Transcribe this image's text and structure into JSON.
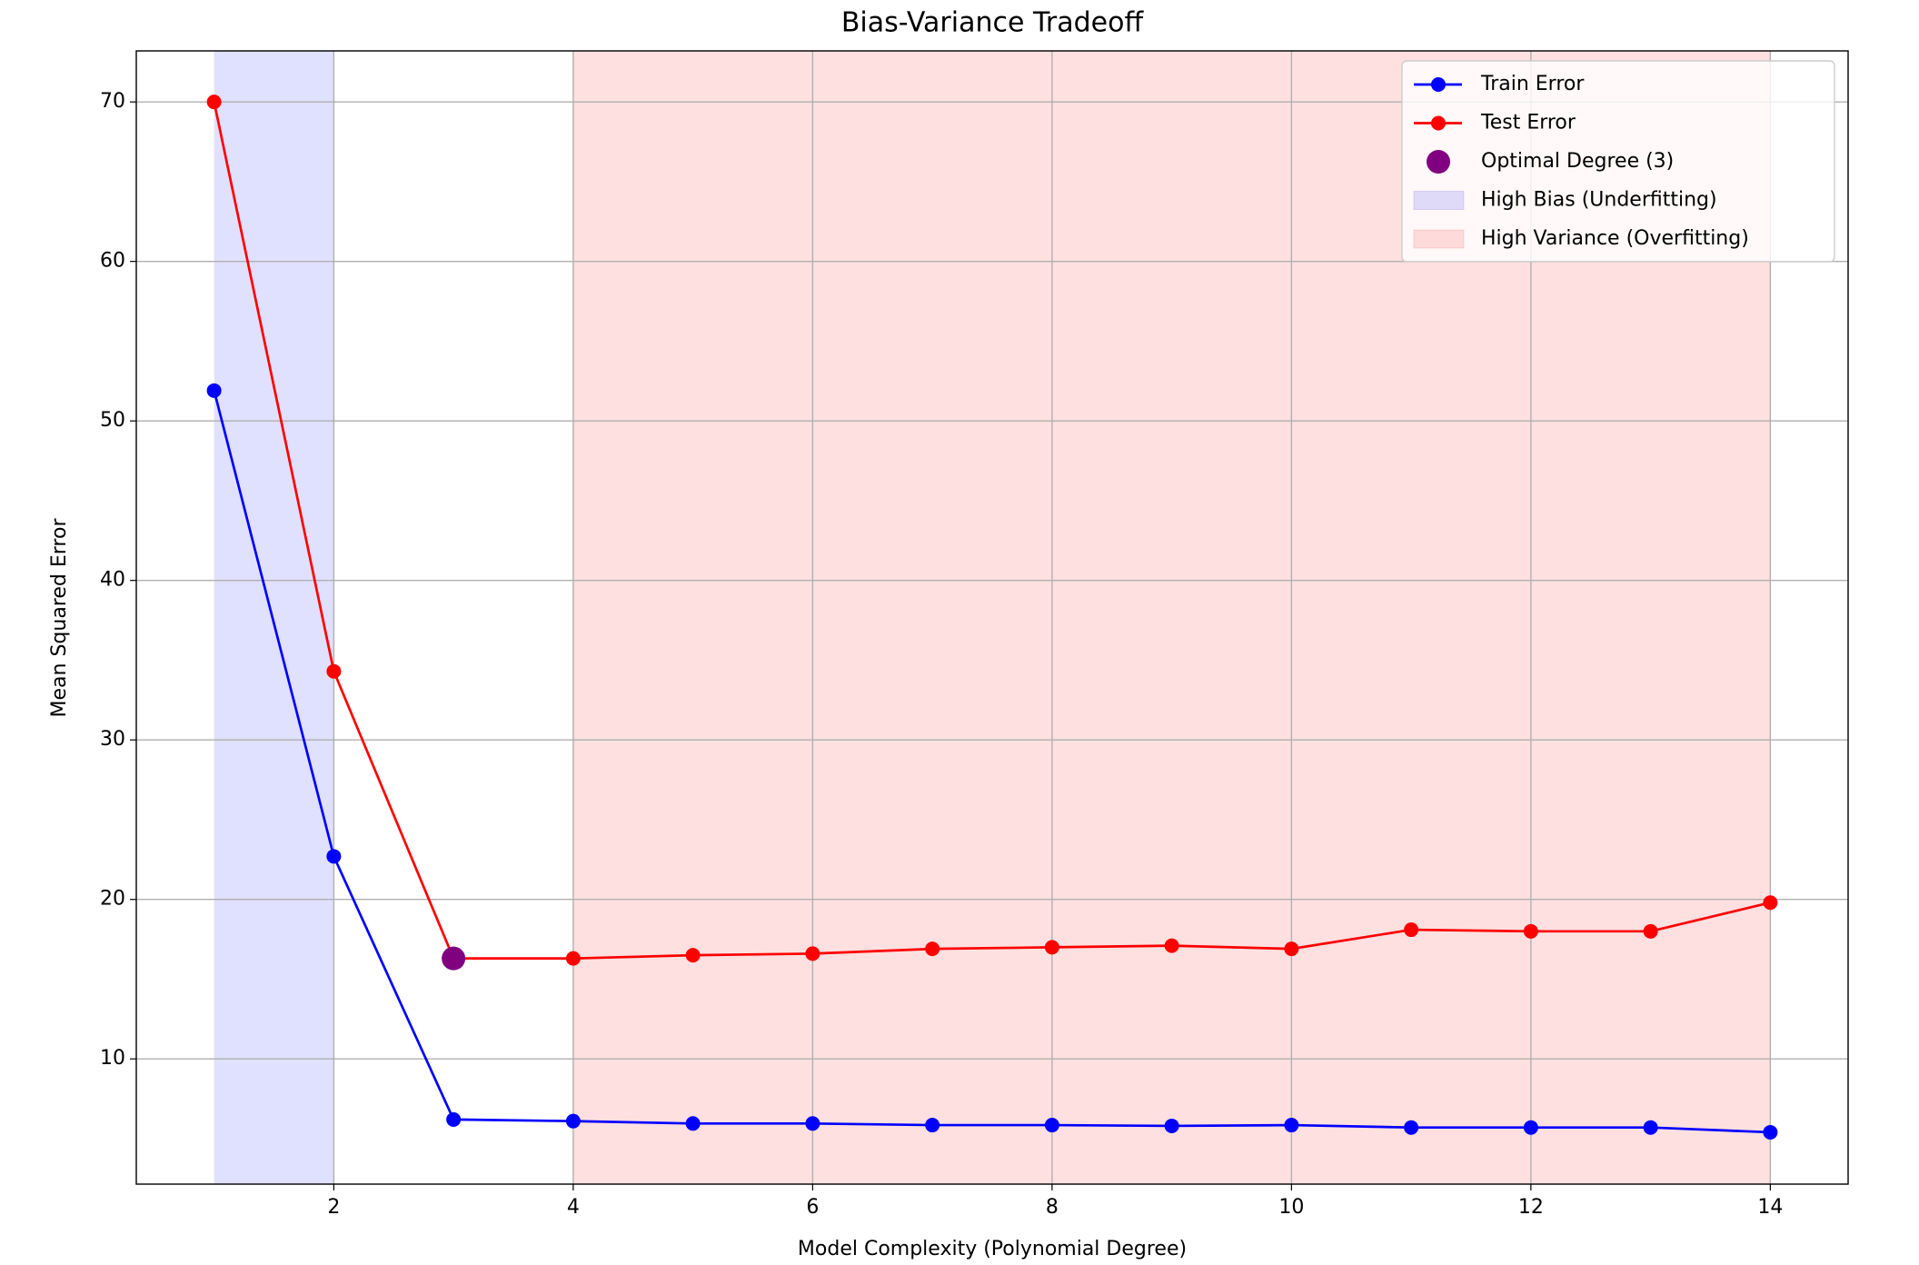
{
  "chart_data": {
    "type": "line",
    "title": "Bias-Variance Tradeoff",
    "x_label": "Model Complexity (Polynomial Degree)",
    "y_label": "Mean Squared Error",
    "x": [
      1,
      2,
      3,
      4,
      5,
      6,
      7,
      8,
      9,
      10,
      11,
      12,
      13,
      14
    ],
    "series": [
      {
        "name": "Train Error",
        "color": "blue",
        "values": [
          51.9,
          22.7,
          6.2,
          6.1,
          5.95,
          5.95,
          5.85,
          5.85,
          5.8,
          5.85,
          5.7,
          5.7,
          5.7,
          5.4
        ]
      },
      {
        "name": "Test Error",
        "color": "red",
        "values": [
          70.0,
          34.3,
          16.3,
          16.3,
          16.5,
          16.6,
          16.9,
          17.0,
          17.1,
          16.9,
          18.1,
          18.0,
          18.0,
          19.8
        ]
      }
    ],
    "optimal": {
      "name": "Optimal Degree (3)",
      "x": 3,
      "y": 16.3,
      "color": "purple"
    },
    "spans": [
      {
        "name": "High Bias (Underfitting)",
        "x0": 1,
        "x1": 2,
        "color": "blue",
        "alpha": 0.12
      },
      {
        "name": "High Variance (Overfitting)",
        "x0": 4,
        "x1": 14,
        "color": "red",
        "alpha": 0.12
      }
    ],
    "xlim": [
      0.35,
      14.65
    ],
    "ylim": [
      2.15,
      73.2
    ],
    "xticks": [
      2,
      4,
      6,
      8,
      10,
      12,
      14
    ],
    "yticks": [
      10,
      20,
      30,
      40,
      50,
      60,
      70
    ],
    "grid": true,
    "legend": "upper right"
  }
}
